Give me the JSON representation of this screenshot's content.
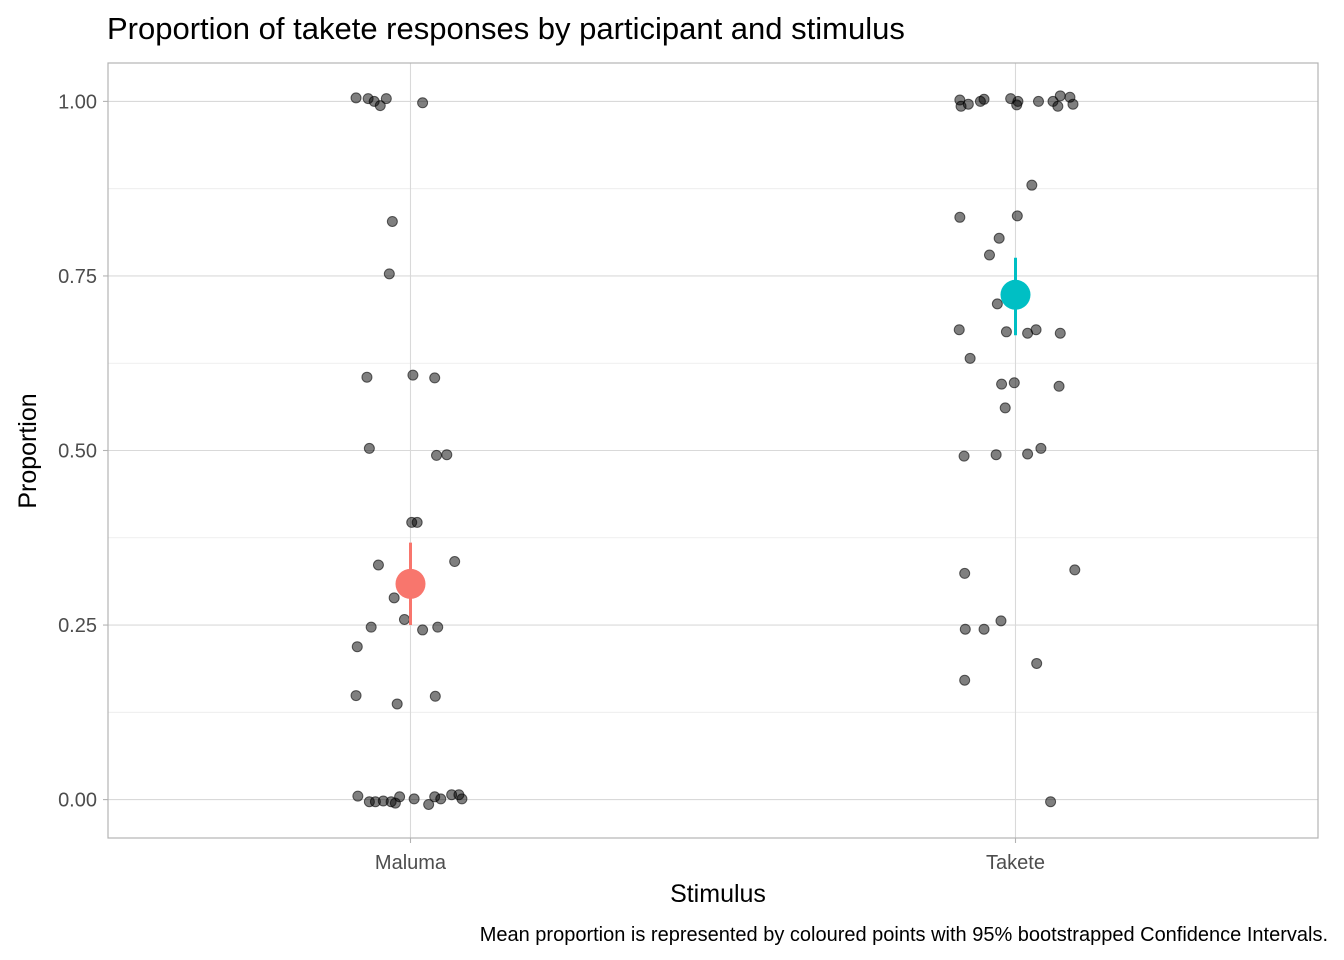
{
  "chart_data": {
    "type": "scatter",
    "title": "Proportion of takete responses by participant and stimulus",
    "xlabel": "Stimulus",
    "ylabel": "Proportion",
    "caption": "Mean proportion is represented by coloured points with 95% bootstrapped Confidence Intervals.",
    "categories": [
      "Maluma",
      "Takete"
    ],
    "ylim": [
      -0.055,
      1.055
    ],
    "yticks": [
      0,
      0.25,
      0.5,
      0.75,
      1
    ],
    "ytick_labels": [
      "0.00",
      "0.25",
      "0.50",
      "0.75",
      "1.00"
    ],
    "grid": true,
    "legend": "none",
    "point_color": "#000000",
    "points": [
      {
        "category": "Maluma",
        "offset": -0.09,
        "y": 1.005
      },
      {
        "category": "Maluma",
        "offset": -0.07,
        "y": 1.004
      },
      {
        "category": "Maluma",
        "offset": -0.06,
        "y": 1.0
      },
      {
        "category": "Maluma",
        "offset": -0.05,
        "y": 0.994
      },
      {
        "category": "Maluma",
        "offset": -0.04,
        "y": 1.004
      },
      {
        "category": "Maluma",
        "offset": 0.02,
        "y": 0.998
      },
      {
        "category": "Maluma",
        "offset": -0.03,
        "y": 0.828
      },
      {
        "category": "Maluma",
        "offset": -0.035,
        "y": 0.753
      },
      {
        "category": "Maluma",
        "offset": -0.072,
        "y": 0.605
      },
      {
        "category": "Maluma",
        "offset": 0.004,
        "y": 0.608
      },
      {
        "category": "Maluma",
        "offset": 0.04,
        "y": 0.604
      },
      {
        "category": "Maluma",
        "offset": -0.068,
        "y": 0.503
      },
      {
        "category": "Maluma",
        "offset": 0.043,
        "y": 0.493
      },
      {
        "category": "Maluma",
        "offset": 0.06,
        "y": 0.494
      },
      {
        "category": "Maluma",
        "offset": 0.002,
        "y": 0.397
      },
      {
        "category": "Maluma",
        "offset": 0.011,
        "y": 0.397
      },
      {
        "category": "Maluma",
        "offset": -0.053,
        "y": 0.336
      },
      {
        "category": "Maluma",
        "offset": 0.073,
        "y": 0.341
      },
      {
        "category": "Maluma",
        "offset": -0.027,
        "y": 0.289
      },
      {
        "category": "Maluma",
        "offset": -0.01,
        "y": 0.258
      },
      {
        "category": "Maluma",
        "offset": -0.065,
        "y": 0.247
      },
      {
        "category": "Maluma",
        "offset": 0.02,
        "y": 0.243
      },
      {
        "category": "Maluma",
        "offset": 0.045,
        "y": 0.247
      },
      {
        "category": "Maluma",
        "offset": -0.088,
        "y": 0.219
      },
      {
        "category": "Maluma",
        "offset": -0.09,
        "y": 0.149
      },
      {
        "category": "Maluma",
        "offset": -0.022,
        "y": 0.137
      },
      {
        "category": "Maluma",
        "offset": 0.041,
        "y": 0.148
      },
      {
        "category": "Maluma",
        "offset": -0.087,
        "y": 0.005
      },
      {
        "category": "Maluma",
        "offset": -0.068,
        "y": -0.003
      },
      {
        "category": "Maluma",
        "offset": -0.058,
        "y": -0.003
      },
      {
        "category": "Maluma",
        "offset": -0.045,
        "y": -0.002
      },
      {
        "category": "Maluma",
        "offset": -0.032,
        "y": -0.003
      },
      {
        "category": "Maluma",
        "offset": -0.025,
        "y": -0.005
      },
      {
        "category": "Maluma",
        "offset": -0.018,
        "y": 0.004
      },
      {
        "category": "Maluma",
        "offset": 0.006,
        "y": 0.001
      },
      {
        "category": "Maluma",
        "offset": 0.03,
        "y": -0.007
      },
      {
        "category": "Maluma",
        "offset": 0.04,
        "y": 0.004
      },
      {
        "category": "Maluma",
        "offset": 0.05,
        "y": 0.001
      },
      {
        "category": "Maluma",
        "offset": 0.068,
        "y": 0.007
      },
      {
        "category": "Maluma",
        "offset": 0.08,
        "y": 0.007
      },
      {
        "category": "Maluma",
        "offset": 0.085,
        "y": 0.001
      },
      {
        "category": "Takete",
        "offset": -0.092,
        "y": 1.002
      },
      {
        "category": "Takete",
        "offset": -0.09,
        "y": 0.993
      },
      {
        "category": "Takete",
        "offset": -0.078,
        "y": 0.996
      },
      {
        "category": "Takete",
        "offset": -0.058,
        "y": 1.0
      },
      {
        "category": "Takete",
        "offset": -0.052,
        "y": 1.003
      },
      {
        "category": "Takete",
        "offset": -0.008,
        "y": 1.004
      },
      {
        "category": "Takete",
        "offset": 0.002,
        "y": 0.995
      },
      {
        "category": "Takete",
        "offset": 0.004,
        "y": 1.0
      },
      {
        "category": "Takete",
        "offset": 0.038,
        "y": 1.0
      },
      {
        "category": "Takete",
        "offset": 0.062,
        "y": 1.0
      },
      {
        "category": "Takete",
        "offset": 0.07,
        "y": 0.993
      },
      {
        "category": "Takete",
        "offset": 0.074,
        "y": 1.008
      },
      {
        "category": "Takete",
        "offset": 0.09,
        "y": 1.006
      },
      {
        "category": "Takete",
        "offset": 0.095,
        "y": 0.996
      },
      {
        "category": "Takete",
        "offset": 0.027,
        "y": 0.88
      },
      {
        "category": "Takete",
        "offset": -0.092,
        "y": 0.834
      },
      {
        "category": "Takete",
        "offset": 0.003,
        "y": 0.836
      },
      {
        "category": "Takete",
        "offset": -0.027,
        "y": 0.804
      },
      {
        "category": "Takete",
        "offset": -0.043,
        "y": 0.78
      },
      {
        "category": "Takete",
        "offset": -0.03,
        "y": 0.71
      },
      {
        "category": "Takete",
        "offset": -0.093,
        "y": 0.673
      },
      {
        "category": "Takete",
        "offset": -0.015,
        "y": 0.67
      },
      {
        "category": "Takete",
        "offset": 0.02,
        "y": 0.668
      },
      {
        "category": "Takete",
        "offset": 0.034,
        "y": 0.673
      },
      {
        "category": "Takete",
        "offset": 0.074,
        "y": 0.668
      },
      {
        "category": "Takete",
        "offset": -0.075,
        "y": 0.632
      },
      {
        "category": "Takete",
        "offset": -0.023,
        "y": 0.595
      },
      {
        "category": "Takete",
        "offset": -0.002,
        "y": 0.597
      },
      {
        "category": "Takete",
        "offset": 0.072,
        "y": 0.592
      },
      {
        "category": "Takete",
        "offset": -0.017,
        "y": 0.561
      },
      {
        "category": "Takete",
        "offset": -0.085,
        "y": 0.492
      },
      {
        "category": "Takete",
        "offset": -0.032,
        "y": 0.494
      },
      {
        "category": "Takete",
        "offset": 0.02,
        "y": 0.495
      },
      {
        "category": "Takete",
        "offset": 0.042,
        "y": 0.503
      },
      {
        "category": "Takete",
        "offset": 0.098,
        "y": 0.329
      },
      {
        "category": "Takete",
        "offset": -0.084,
        "y": 0.324
      },
      {
        "category": "Takete",
        "offset": -0.024,
        "y": 0.256
      },
      {
        "category": "Takete",
        "offset": -0.083,
        "y": 0.244
      },
      {
        "category": "Takete",
        "offset": -0.052,
        "y": 0.244
      },
      {
        "category": "Takete",
        "offset": 0.035,
        "y": 0.195
      },
      {
        "category": "Takete",
        "offset": -0.084,
        "y": 0.171
      },
      {
        "category": "Takete",
        "offset": 0.058,
        "y": -0.003
      }
    ],
    "means": [
      {
        "category": "Maluma",
        "mean": 0.309,
        "ci_low": 0.25,
        "ci_high": 0.368,
        "color": "#F8766D"
      },
      {
        "category": "Takete",
        "mean": 0.723,
        "ci_low": 0.665,
        "ci_high": 0.776,
        "color": "#00BFC4"
      }
    ]
  }
}
